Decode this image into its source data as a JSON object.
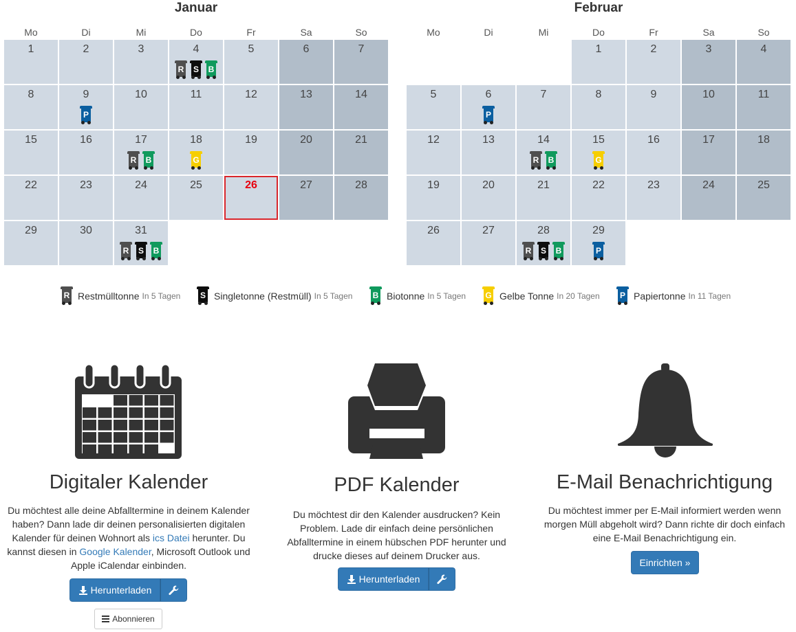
{
  "calendar": {
    "weekdays": [
      "Mo",
      "Di",
      "Mi",
      "Do",
      "Fr",
      "Sa",
      "So"
    ],
    "months": [
      {
        "name": "Januar",
        "offset": 0,
        "days": 31,
        "today": 26,
        "pickups": {
          "4": [
            "R",
            "S",
            "B"
          ],
          "9": [
            "P"
          ],
          "17": [
            "R",
            "B"
          ],
          "18": [
            "G"
          ],
          "31": [
            "R",
            "S",
            "B"
          ]
        }
      },
      {
        "name": "Februar",
        "offset": 3,
        "days": 29,
        "today": null,
        "pickups": {
          "6": [
            "P"
          ],
          "14": [
            "R",
            "B"
          ],
          "15": [
            "G"
          ],
          "28": [
            "R",
            "S",
            "B"
          ],
          "29": [
            "P"
          ]
        }
      }
    ]
  },
  "bin_types": {
    "R": {
      "letter": "R",
      "color": "#4f4f4f"
    },
    "S": {
      "letter": "S",
      "color": "#0d0d0d"
    },
    "B": {
      "letter": "B",
      "color": "#109a5d"
    },
    "G": {
      "letter": "G",
      "color": "#f6ce00"
    },
    "P": {
      "letter": "P",
      "color": "#0b5fa0"
    }
  },
  "legend": [
    {
      "key": "R",
      "name": "Restmülltonne",
      "days": "In 5 Tagen"
    },
    {
      "key": "S",
      "name": "Singletonne (Restmüll)",
      "days": "In 5 Tagen"
    },
    {
      "key": "B",
      "name": "Biotonne",
      "days": "In 5 Tagen"
    },
    {
      "key": "G",
      "name": "Gelbe Tonne",
      "days": "In 20 Tagen"
    },
    {
      "key": "P",
      "name": "Papiertonne",
      "days": "In 11 Tagen"
    }
  ],
  "digital": {
    "title": "Digitaler Kalender",
    "text_1": "Du möchtest alle deine Abfalltermine in deinem Kalender haben? Dann lade dir deinen personalisierten digitalen Kalender für deinen Wohnort als ",
    "link_ics": "ics Datei",
    "text_2": " herunter. Du kannst diesen in ",
    "link_google": "Google Kalender",
    "text_3": ", Microsoft Outlook und Apple iCalendar einbinden.",
    "download_label": "Herunterladen",
    "subscribe_label": "Abonnieren"
  },
  "pdf": {
    "title": "PDF Kalender",
    "text": "Du möchtest dir den Kalender ausdrucken? Kein Problem. Lade dir einfach deine persönlichen Abfalltermine in einem hübschen PDF herunter und drucke dieses auf deinem Drucker aus.",
    "download_label": "Herunterladen"
  },
  "email": {
    "title": "E-Mail Benachrichtigung",
    "text": "Du möchtest immer per E-Mail informiert werden wenn morgen Müll abgeholt wird? Dann richte dir doch einfach eine E-Mail Benachrichtigung ein.",
    "setup_label": "Einrichten »"
  },
  "colors": {
    "accent": "#337ab7",
    "today": "#e8000e",
    "weekday_cell": "#d0d9e3",
    "weekend_cell": "#b1bdc9",
    "icon": "#333333"
  }
}
